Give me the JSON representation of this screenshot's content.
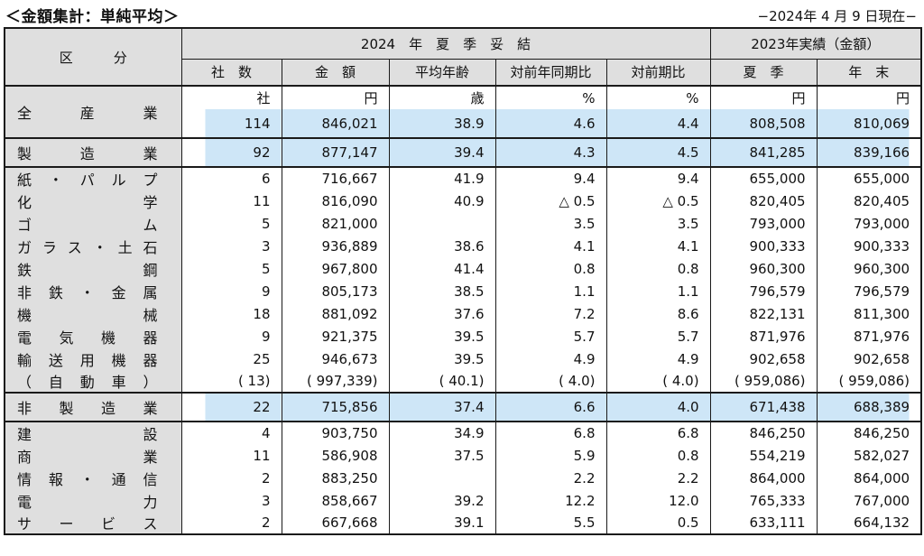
{
  "page": {
    "title": "＜金額集計：単純平均＞",
    "date_note": "−2024年 4 月 9 日現在−"
  },
  "colors": {
    "highlight": "#cee6f7",
    "panel_gray": "#dfdfdf",
    "border": "#1a1a1a"
  },
  "table": {
    "header": {
      "category": "区　　　分",
      "group_2024": "2024　年　夏　季　妥　結",
      "group_2023": "2023年実績（金額）",
      "columns": [
        "社　数",
        "金　額",
        "平均年齢",
        "対前年同期比",
        "対前期比",
        "夏　季",
        "年　末"
      ]
    },
    "rows": [
      {
        "kind": "units",
        "label": "全 産 業",
        "labelRowspan": 2,
        "units": [
          "社",
          "円",
          "歳",
          "%",
          "%",
          "円",
          "円"
        ]
      },
      {
        "kind": "total",
        "skipLabel": true,
        "highlight": true,
        "values": [
          "114",
          "846,021",
          "38.9",
          "4.6",
          "4.4",
          "808,508",
          "810,069"
        ]
      },
      {
        "kind": "total",
        "label": "製 造 業",
        "highlight": true,
        "sectionStart": true,
        "values": [
          "92",
          "877,147",
          "39.4",
          "4.3",
          "4.5",
          "841,285",
          "839,166"
        ]
      },
      {
        "kind": "item",
        "label": "紙 ・ パ ル プ",
        "sectionStart": true,
        "values": [
          "6",
          "716,667",
          "41.9",
          "9.4",
          "9.4",
          "655,000",
          "655,000"
        ]
      },
      {
        "kind": "item",
        "label": "化 学",
        "values": [
          "11",
          "816,090",
          "40.9",
          "△ 0.5",
          "△ 0.5",
          "820,405",
          "820,405"
        ]
      },
      {
        "kind": "item",
        "label": "ゴ ム",
        "values": [
          "5",
          "821,000",
          "",
          "3.5",
          "3.5",
          "793,000",
          "793,000"
        ]
      },
      {
        "kind": "item",
        "label": "ガ ラ ス ・ 土 石",
        "values": [
          "3",
          "936,889",
          "38.6",
          "4.1",
          "4.1",
          "900,333",
          "900,333"
        ]
      },
      {
        "kind": "item",
        "label": "鉄 鋼",
        "values": [
          "5",
          "967,800",
          "41.4",
          "0.8",
          "0.8",
          "960,300",
          "960,300"
        ]
      },
      {
        "kind": "item",
        "label": "非 鉄 ・ 金 属",
        "values": [
          "9",
          "805,173",
          "38.5",
          "1.1",
          "1.1",
          "796,579",
          "796,579"
        ]
      },
      {
        "kind": "item",
        "label": "機 械",
        "values": [
          "18",
          "881,092",
          "37.6",
          "7.2",
          "8.6",
          "822,131",
          "811,300"
        ]
      },
      {
        "kind": "item",
        "label": "電 気 機 器",
        "values": [
          "9",
          "921,375",
          "39.5",
          "5.7",
          "5.7",
          "871,976",
          "871,976"
        ]
      },
      {
        "kind": "item",
        "label": "輸 送 用 機 器",
        "values": [
          "25",
          "946,673",
          "39.5",
          "4.9",
          "4.9",
          "902,658",
          "902,658"
        ]
      },
      {
        "kind": "item",
        "label": "（ 自 動 車 ）",
        "values": [
          "( 13)",
          "( 997,339)",
          "( 40.1)",
          "( 4.0)",
          "( 4.0)",
          "( 959,086)",
          "( 959,086)"
        ]
      },
      {
        "kind": "total",
        "label": "非 製 造 業",
        "highlight": true,
        "sectionStart": true,
        "values": [
          "22",
          "715,856",
          "37.4",
          "6.6",
          "4.0",
          "671,438",
          "688,389"
        ]
      },
      {
        "kind": "item",
        "label": "建 設",
        "sectionStart": true,
        "values": [
          "4",
          "903,750",
          "34.9",
          "6.8",
          "6.8",
          "846,250",
          "846,250"
        ]
      },
      {
        "kind": "item",
        "label": "商 業",
        "values": [
          "11",
          "586,908",
          "37.5",
          "5.9",
          "0.8",
          "554,219",
          "582,027"
        ]
      },
      {
        "kind": "item",
        "label": "情 報 ・ 通 信",
        "values": [
          "2",
          "883,250",
          "",
          "2.2",
          "2.2",
          "864,000",
          "864,000"
        ]
      },
      {
        "kind": "item",
        "label": "電 力",
        "values": [
          "3",
          "858,667",
          "39.2",
          "12.2",
          "12.0",
          "765,333",
          "767,000"
        ]
      },
      {
        "kind": "item",
        "label": "サ ー ビ ス",
        "values": [
          "2",
          "667,668",
          "39.1",
          "5.5",
          "0.5",
          "633,111",
          "664,132"
        ]
      }
    ]
  }
}
